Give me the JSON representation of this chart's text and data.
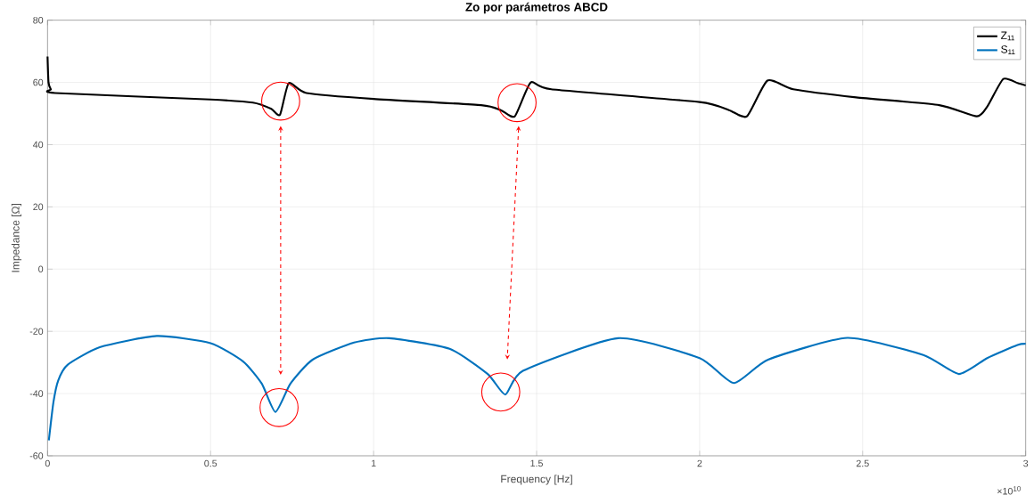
{
  "chart_data": {
    "type": "line",
    "title": "Zo por parámetros ABCD",
    "xlabel": "Frequency [Hz]",
    "ylabel": "Impedance [Ω]",
    "xlim": [
      0,
      3
    ],
    "ylim": [
      -60,
      80
    ],
    "xticks": [
      0,
      0.5,
      1,
      1.5,
      2,
      2.5,
      3
    ],
    "yticks": [
      -60,
      -40,
      -20,
      0,
      20,
      40,
      60,
      80
    ],
    "grid": true,
    "legend": "top right",
    "marker": "none",
    "line_style": "solid",
    "annotations": [
      "×10$^{10}$"
    ],
    "series": [
      {
        "name": "Z$_{11}$",
        "color": "#000000",
        "x": [
          0,
          0.003,
          0.01,
          0.023,
          0.5,
          0.63,
          0.686,
          0.713,
          0.74,
          0.794,
          1.0,
          1.33,
          1.39,
          1.433,
          1.482,
          1.545,
          2.0,
          2.09,
          2.145,
          2.208,
          2.287,
          2.48,
          2.735,
          2.85,
          2.882,
          2.931,
          2.975,
          3.0
        ],
        "values": [
          68.3,
          60,
          57.8,
          56.6,
          54.5,
          53.5,
          51.5,
          49.6,
          59.8,
          56.6,
          54.7,
          52.7,
          51.1,
          49.1,
          60,
          57.8,
          53.7,
          51.1,
          49.1,
          60.6,
          57.8,
          55.2,
          52.7,
          49.1,
          52.2,
          61.1,
          59.8,
          59
        ]
      },
      {
        "name": "S$_{11}$",
        "color": "#0072bd",
        "x": [
          0.004,
          0.018,
          0.033,
          0.062,
          0.16,
          0.335,
          0.5,
          0.6,
          0.657,
          0.699,
          0.745,
          0.813,
          0.94,
          1.048,
          1.233,
          1.35,
          1.404,
          1.458,
          1.75,
          2.0,
          2.105,
          2.21,
          2.453,
          2.686,
          2.795,
          2.882,
          2.975,
          3.0
        ],
        "values": [
          -55,
          -42.8,
          -35.7,
          -30.7,
          -25.1,
          -21.5,
          -23.8,
          -29.7,
          -36.8,
          -45.9,
          -36.8,
          -29.1,
          -23.6,
          -22.2,
          -25.6,
          -33.7,
          -40.3,
          -32.7,
          -22.2,
          -28.6,
          -36.6,
          -29.1,
          -22.1,
          -27.6,
          -33.7,
          -28.6,
          -24.4,
          -24
        ]
      }
    ]
  }
}
